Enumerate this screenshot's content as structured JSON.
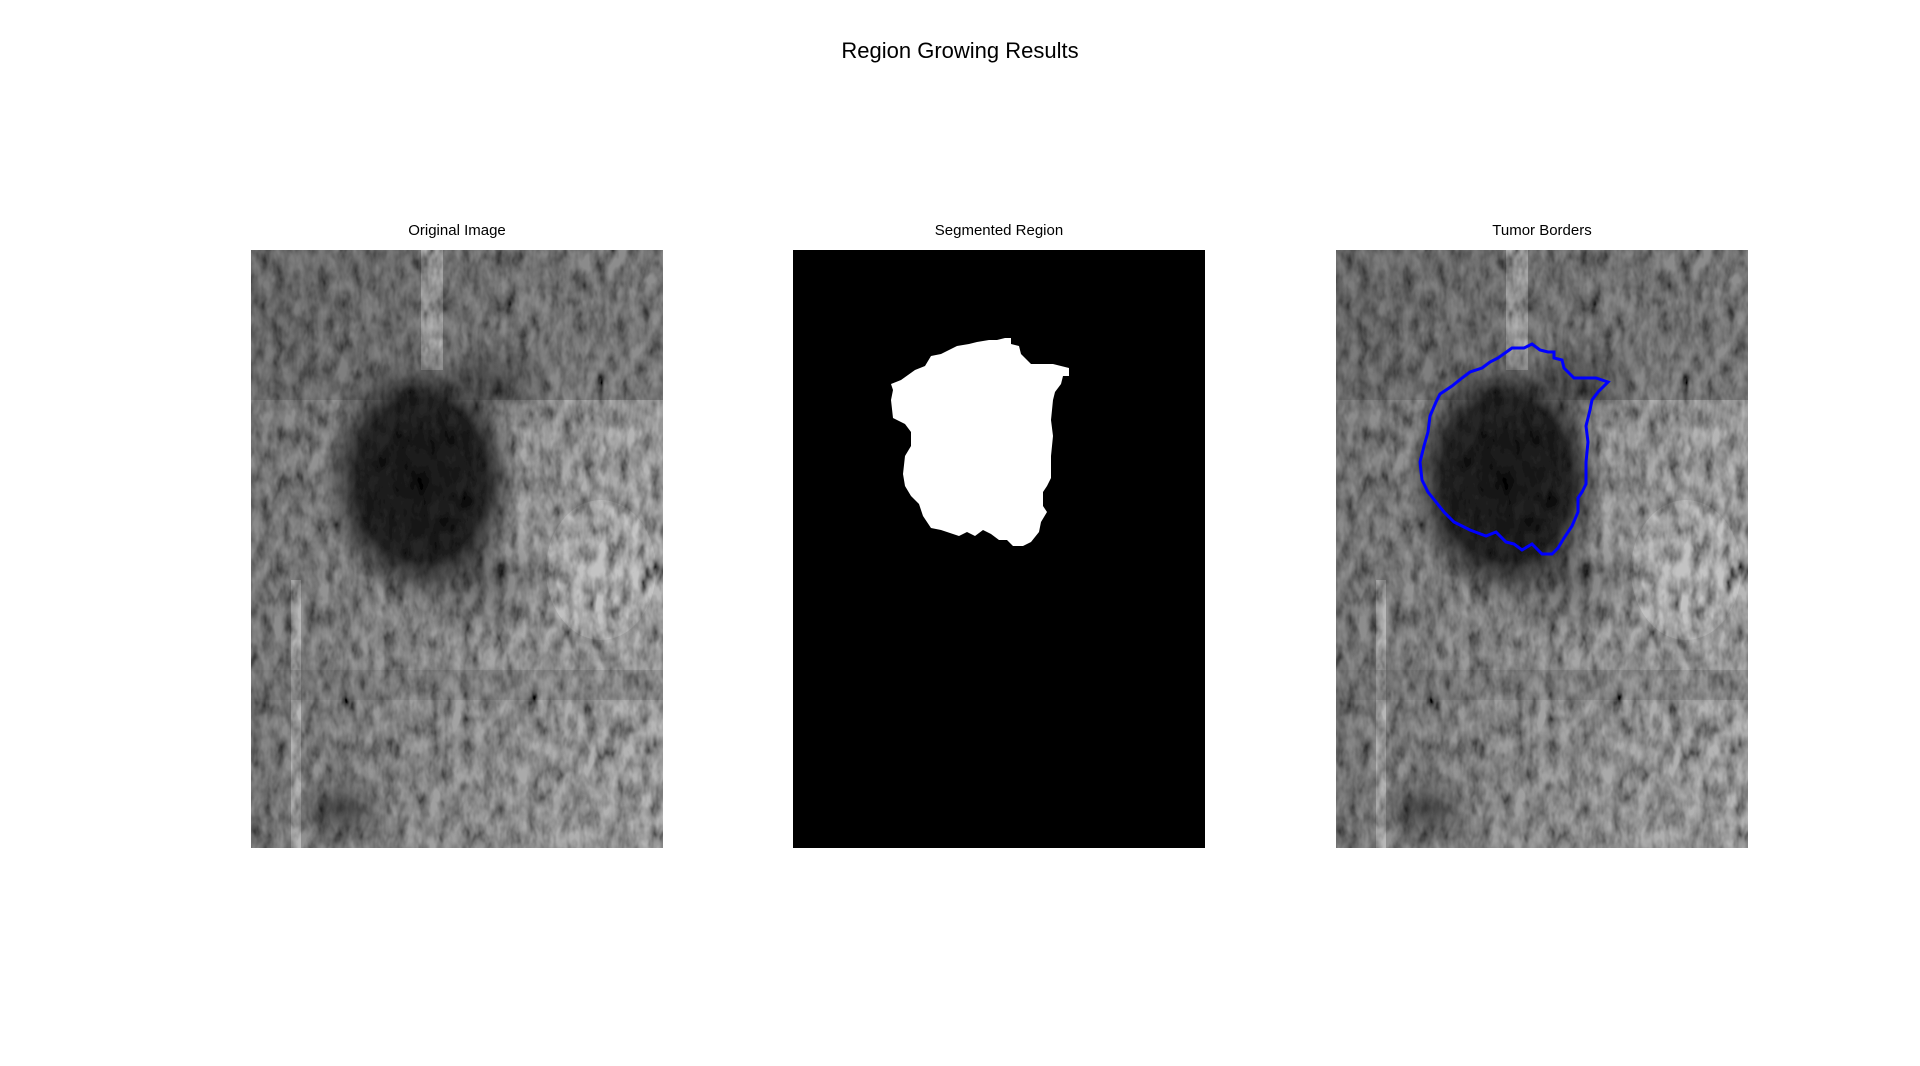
{
  "figure": {
    "title": "Region Growing Results"
  },
  "panels": [
    {
      "title": "Original Image"
    },
    {
      "title": "Segmented Region"
    },
    {
      "title": "Tumor Borders"
    }
  ],
  "colors": {
    "background": "#ffffff",
    "mask_background": "#000000",
    "mask_region": "#ffffff",
    "border_overlay": "#0000ff"
  }
}
